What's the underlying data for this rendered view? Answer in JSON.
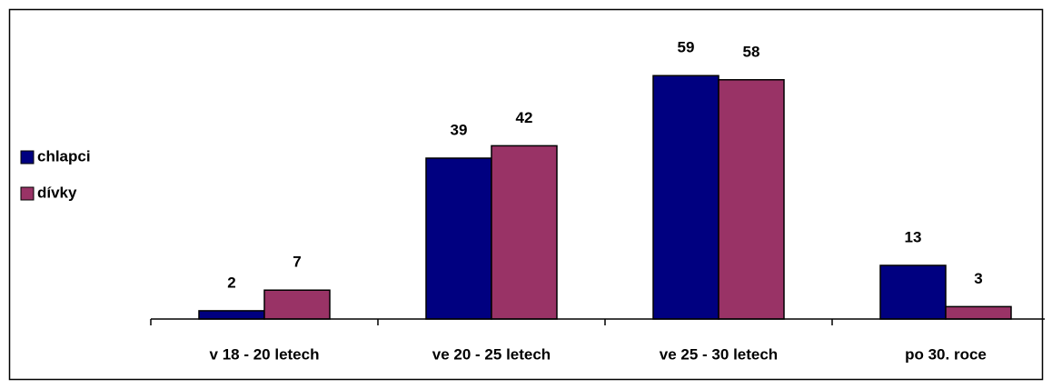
{
  "chart_data": {
    "type": "bar",
    "categories": [
      "v 18 - 20 letech",
      "ve 20 - 25 letech",
      "ve 25 - 30 letech",
      "po 30. roce"
    ],
    "series": [
      {
        "name": "chlapci",
        "color": "#000080",
        "values": [
          2,
          39,
          59,
          13
        ]
      },
      {
        "name": "dívky",
        "color": "#993366",
        "values": [
          7,
          42,
          58,
          3
        ]
      }
    ],
    "ylim": [
      0,
      65
    ],
    "legend": "left"
  }
}
